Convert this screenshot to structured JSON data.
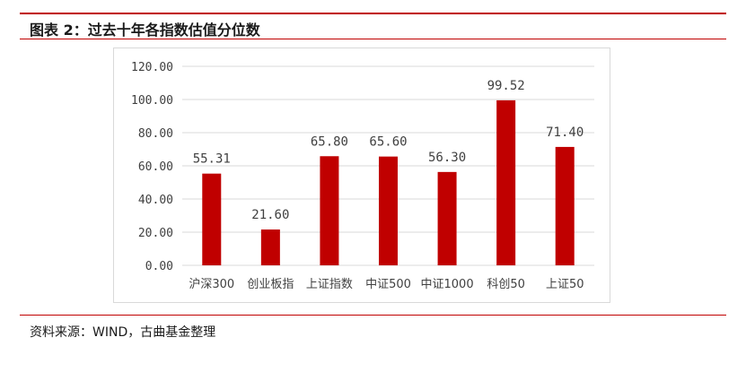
{
  "header": {
    "figure_title": "图表 2：过去十年各指数估值分位数"
  },
  "footer": {
    "source": "资料来源：WIND，古曲基金整理"
  },
  "colors": {
    "bar": "#c00000",
    "rule": "#c00000",
    "gridline": "#d9d9d9",
    "text": "#404040"
  },
  "chart_data": {
    "type": "bar",
    "title": "",
    "xlabel": "",
    "ylabel": "",
    "ylim": [
      0,
      120
    ],
    "yticks": [
      "0.00",
      "20.00",
      "40.00",
      "60.00",
      "80.00",
      "100.00",
      "120.00"
    ],
    "grid": true,
    "legend": "none",
    "categories": [
      "沪深300",
      "创业板指",
      "上证指数",
      "中证500",
      "中证1000",
      "科创50",
      "上证50"
    ],
    "values": [
      55.31,
      21.6,
      65.8,
      65.6,
      56.3,
      99.52,
      71.4
    ],
    "data_labels": [
      "55.31",
      "21.60",
      "65.80",
      "65.60",
      "56.30",
      "99.52",
      "71.40"
    ]
  }
}
